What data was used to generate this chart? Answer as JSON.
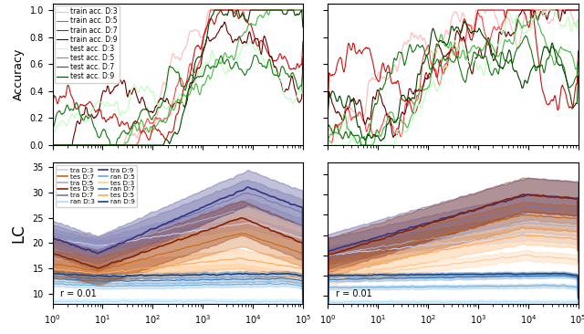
{
  "top_left": {
    "ylabel": "Accuracy",
    "ylim": [
      0.0,
      1.05
    ],
    "train_colors": [
      "#ffbbbb",
      "#ff4444",
      "#cc1111",
      "#660000"
    ],
    "test_colors": [
      "#bbffbb",
      "#44bb44",
      "#117711",
      "#004400"
    ],
    "depths": [
      3,
      5,
      7,
      9
    ],
    "train_labels": [
      "train acc. D:3",
      "train acc. D:5",
      "train acc. D:7",
      "train acc. D:9"
    ],
    "test_labels": [
      "test acc. D:3",
      "test acc. D:5",
      "test acc. D:7",
      "test acc. D:9"
    ]
  },
  "top_right": {
    "ylim": [
      0.0,
      1.05
    ],
    "train_colors": [
      "#ffbbbb",
      "#ff4444",
      "#cc1111",
      "#660000"
    ],
    "test_colors": [
      "#bbffbb",
      "#44bb44",
      "#117711",
      "#004400"
    ]
  },
  "bottom_left": {
    "ylabel": "LC",
    "ylim": [
      8,
      36
    ],
    "annotation": "r = 0.01",
    "tra_colors": [
      "#ccccee",
      "#aaaacc",
      "#7777aa",
      "#333388"
    ],
    "tes_colors": [
      "#ffcc99",
      "#ffaa55",
      "#cc6611",
      "#882200"
    ],
    "ran_colors": [
      "#aaddff",
      "#66aadd",
      "#3377bb",
      "#114488"
    ],
    "depths": [
      3,
      5,
      7,
      9
    ],
    "tra_labels": [
      "tra D:3",
      "tra D:5",
      "tra D:7",
      "tra D:9"
    ],
    "tes_labels": [
      "tes D:3",
      "tes D:5",
      "tes D:7",
      "tes D:9"
    ],
    "ran_labels": [
      "ran D:3",
      "ran D:5",
      "ran D:7",
      "ran D:9"
    ]
  },
  "bottom_right": {
    "ylim": [
      8,
      43
    ],
    "annotation": "r = 0.01",
    "tra_colors": [
      "#ccccee",
      "#aaaacc",
      "#7777aa",
      "#333388"
    ],
    "tes_colors": [
      "#ffcc99",
      "#ffaa55",
      "#cc6611",
      "#882200"
    ],
    "ran_colors": [
      "#aaddff",
      "#66aadd",
      "#3377bb",
      "#114488"
    ]
  }
}
